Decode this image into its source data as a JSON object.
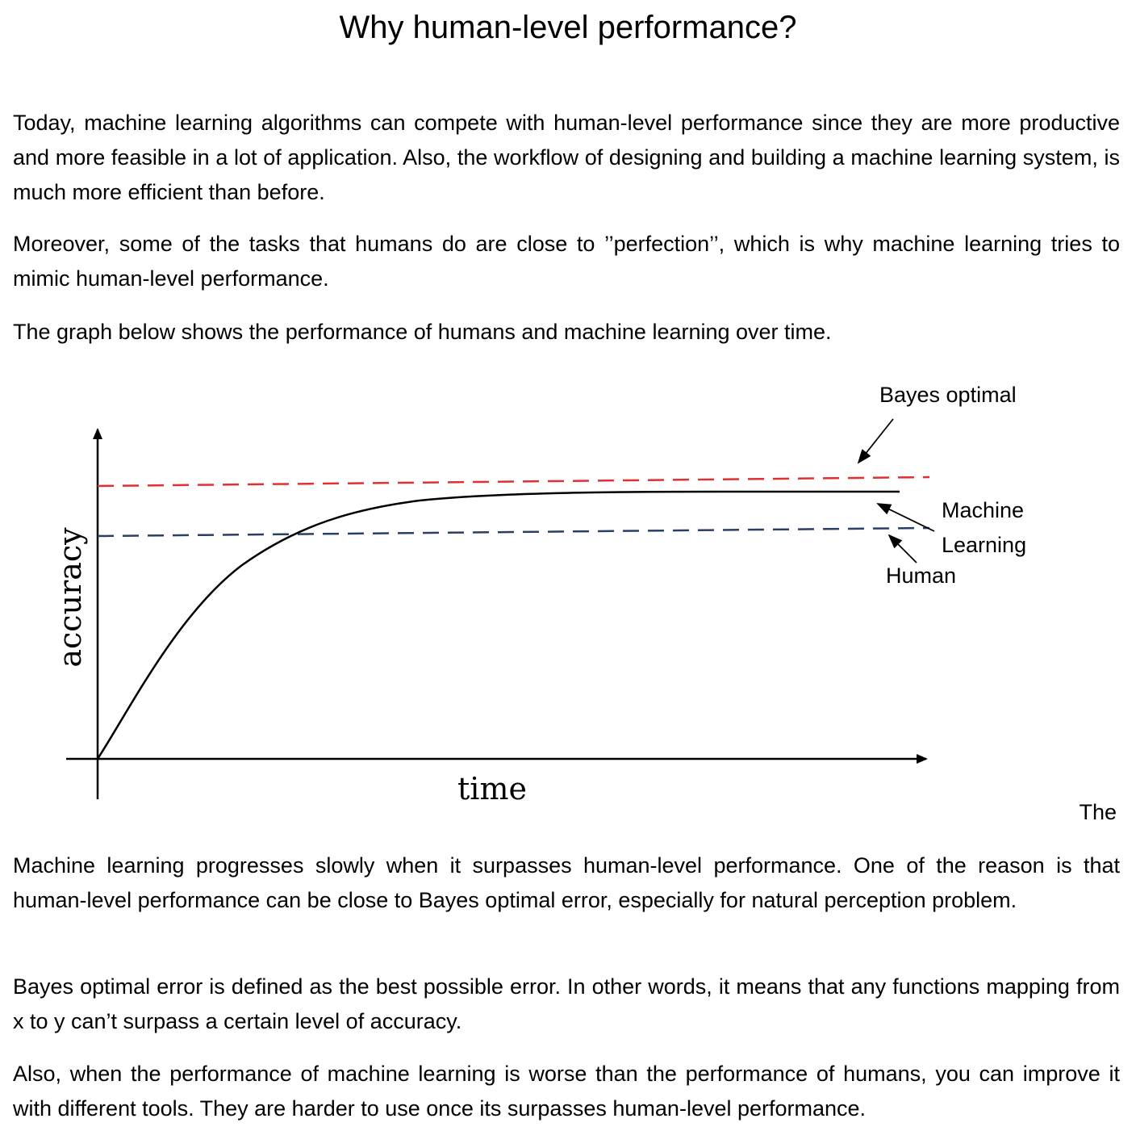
{
  "title": "Why human-level performance?",
  "paragraphs": {
    "p1": "Today, machine learning algorithms can compete with human-level performance since they are more productive and more feasible in a lot of application. Also, the workflow of designing and building a machine learning system, is much more efficient than before.",
    "p2": "Moreover, some of the tasks that humans do are close to ’’perfection’’, which is why machine learning tries to mimic human-level performance.",
    "p3": "The graph below shows the performance of humans and machine learning over time.",
    "trailing": "The",
    "p4": "Machine learning progresses slowly when it surpasses human-level performance. One of the reason is that human-level performance can be close to Bayes optimal error, especially for natural perception problem.",
    "p5": "Bayes optimal error is defined as the best possible error. In other words, it means that any functions mapping from x to y can’t surpass a certain level of accuracy.",
    "p6": "Also, when the performance of machine learning is worse than the performance of humans, you can improve it with different tools. They are harder to use once its surpasses human-level performance."
  },
  "chart_data": {
    "type": "line",
    "xlabel": "time",
    "ylabel": "accuracy",
    "labels": {
      "bayes": "Bayes optimal",
      "ml_line1": "Machine",
      "ml_line2": "Learning",
      "human": "Human"
    },
    "colors": {
      "bayes": "#e03030",
      "human": "#2a3f66",
      "ml": "#000000",
      "axes": "#000000"
    },
    "series": [
      {
        "key": "bayes",
        "style": "dashed",
        "shape": "near-flat, slightly rising, highest level"
      },
      {
        "key": "human",
        "style": "dashed",
        "shape": "near-flat, slightly rising, below Bayes"
      },
      {
        "key": "ml",
        "style": "solid",
        "shape": "rises from origin, crosses Human, plateaus just below Bayes"
      }
    ]
  }
}
